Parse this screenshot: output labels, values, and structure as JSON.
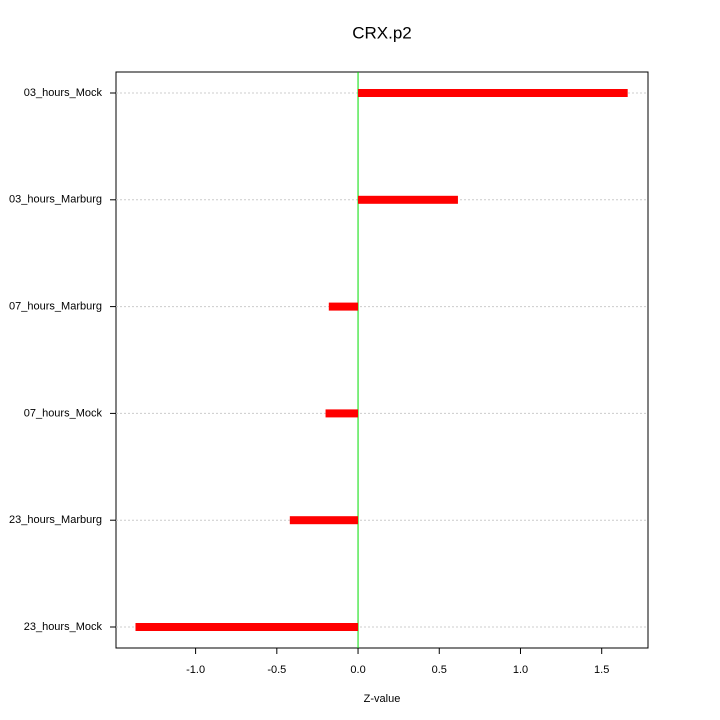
{
  "chart_data": {
    "type": "hbar",
    "title": "CRX.p2",
    "x_label": "Z-value",
    "categories": [
      "03_hours_Mock",
      "03_hours_Marburg",
      "07_hours_Marburg",
      "07_hours_Mock",
      "23_hours_Marburg",
      "23_hours_Mock"
    ],
    "values": [
      1.66,
      0.615,
      -0.18,
      -0.2,
      -0.42,
      -1.37
    ],
    "color": "#ff0000",
    "xlim": [
      -1.49,
      1.785
    ],
    "xticks": [
      {
        "value": -1,
        "label": "-1.0"
      },
      -0.5,
      {
        "value": 0,
        "label": "0.0"
      },
      0.5,
      {
        "value": 1,
        "label": "1.0"
      },
      1.5
    ],
    "reference_line": {
      "value": 0,
      "color": "#00dd00"
    }
  }
}
